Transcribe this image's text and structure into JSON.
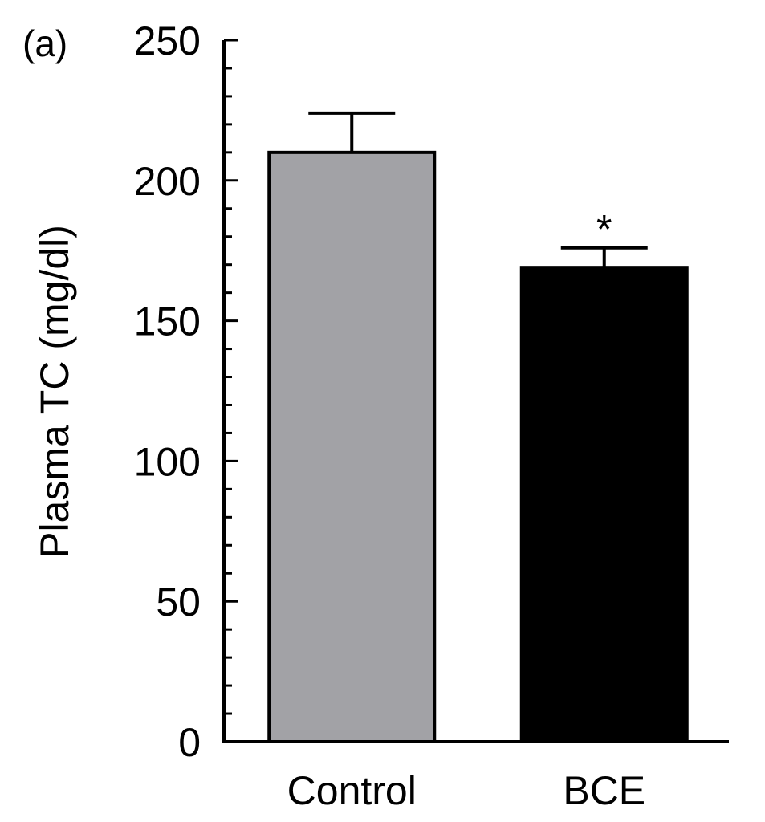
{
  "panel_label": "(a)",
  "chart_data": {
    "type": "bar",
    "title": "",
    "xlabel": "",
    "ylabel": "Plasma TC (mg/dl)",
    "categories": [
      "Control",
      "BCE"
    ],
    "values": [
      210,
      169
    ],
    "errors": [
      14,
      7
    ],
    "bar_colors": [
      "#a2a2a6",
      "#000000"
    ],
    "significance": [
      "",
      "*"
    ],
    "ylim": [
      0,
      250
    ],
    "yticks": [
      0,
      50,
      100,
      150,
      200,
      250
    ],
    "minor_tick_step": 10,
    "grid": false,
    "legend": "none"
  }
}
